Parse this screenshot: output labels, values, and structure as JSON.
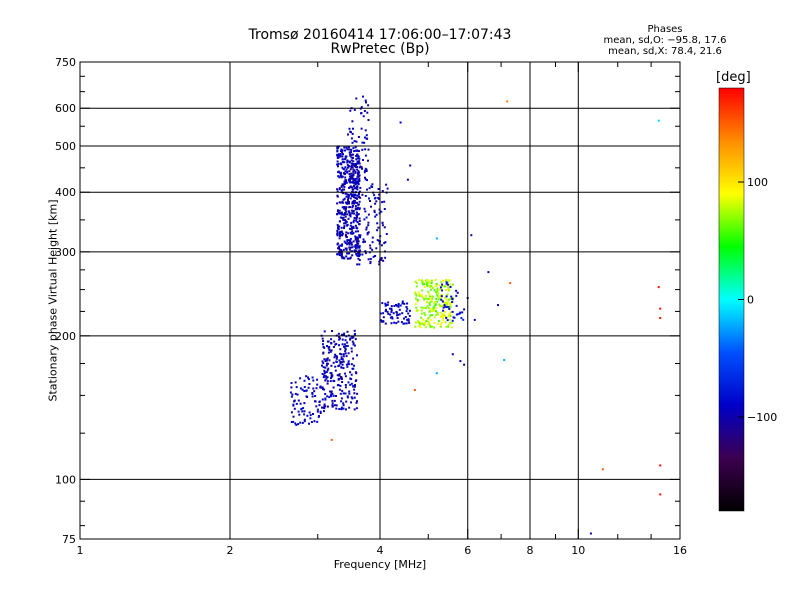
{
  "title_line1": "Tromsø 20160414 17:06:00–17:07:43",
  "title_line2": "RwPretec (Bp)",
  "phases": {
    "header": "Phases",
    "line_o": "mean, sd,O: −95.8, 17.6",
    "line_x": "mean, sd,X:  78.4, 21.6"
  },
  "chart_data": {
    "type": "scatter",
    "title": "Tromsø 20160414 17:06:00–17:07:43",
    "subtitle": "RwPretec (Bp)",
    "xlabel": "Frequency [MHz]",
    "ylabel": "Stationary phase Virtual Height [km]",
    "x_scale": "log",
    "y_scale": "log",
    "xlim": [
      1,
      16
    ],
    "ylim": [
      75,
      750
    ],
    "x_ticks": [
      1,
      2,
      4,
      6,
      8,
      10,
      16
    ],
    "x_tick_labels": [
      "1",
      "2",
      "4",
      "6",
      "8",
      "10",
      "16"
    ],
    "x_gridlines": [
      2,
      4,
      6,
      8,
      10
    ],
    "x_minor_ticks": [
      3,
      5,
      7,
      9,
      12,
      14
    ],
    "y_ticks": [
      75,
      100,
      200,
      300,
      400,
      500,
      600,
      750
    ],
    "y_tick_labels": [
      "75",
      "100",
      "200",
      "300",
      "400",
      "500",
      "600",
      "750"
    ],
    "y_gridlines": [
      100,
      200,
      300,
      400,
      500,
      600
    ],
    "y_minor_ticks": [
      80,
      90,
      125,
      150,
      175,
      225,
      250,
      275,
      350,
      450,
      550,
      650,
      700
    ],
    "grid": true,
    "colorbar": {
      "label": "[deg]",
      "range": [
        -180,
        180
      ],
      "ticks": [
        100,
        0,
        -100
      ],
      "tick_labels": [
        "100",
        "0",
        "−100"
      ],
      "colors": [
        "#ff0000",
        "#ff8c00",
        "#ffff00",
        "#00ff00",
        "#00ffff",
        "#0050ff",
        "#0000c8",
        "#3c0050",
        "#000000"
      ]
    },
    "clusters": [
      {
        "name": "",
        "points": 520,
        "f": [
          3.28,
          3.65
        ],
        "h": [
          290,
          500
        ],
        "phase": [
          -110,
          -85
        ]
      },
      {
        "name": "",
        "points": 60,
        "f": [
          3.45,
          3.8
        ],
        "h": [
          420,
          640
        ],
        "phase": [
          -110,
          -85
        ]
      },
      {
        "name": "",
        "points": 110,
        "f": [
          3.55,
          4.15
        ],
        "h": [
          280,
          420
        ],
        "phase": [
          -110,
          -80
        ]
      },
      {
        "name": "",
        "points": 250,
        "f": [
          3.05,
          3.6
        ],
        "h": [
          140,
          205
        ],
        "phase": [
          -112,
          -80
        ]
      },
      {
        "name": "",
        "points": 90,
        "f": [
          2.65,
          3.1
        ],
        "h": [
          130,
          165
        ],
        "phase": [
          -105,
          -80
        ]
      },
      {
        "name": "",
        "points": 70,
        "f": [
          4.0,
          4.6
        ],
        "h": [
          212,
          236
        ],
        "phase": [
          -100,
          -85
        ]
      },
      {
        "name": "",
        "points": 230,
        "f": [
          4.7,
          5.6
        ],
        "h": [
          208,
          262
        ],
        "phase": [
          55,
          95
        ]
      },
      {
        "name": "",
        "points": 40,
        "f": [
          5.3,
          5.9
        ],
        "h": [
          215,
          260
        ],
        "phase": [
          -100,
          -70
        ]
      }
    ],
    "isolated_points": [
      {
        "f": 7.2,
        "h": 620,
        "phase": 140
      },
      {
        "f": 14.5,
        "h": 565,
        "phase": -10
      },
      {
        "f": 4.4,
        "h": 560,
        "phase": -90
      },
      {
        "f": 4.6,
        "h": 455,
        "phase": -95
      },
      {
        "f": 4.55,
        "h": 425,
        "phase": -95
      },
      {
        "f": 6.1,
        "h": 325,
        "phase": -100
      },
      {
        "f": 5.2,
        "h": 320,
        "phase": -20
      },
      {
        "f": 6.6,
        "h": 272,
        "phase": -100
      },
      {
        "f": 7.3,
        "h": 258,
        "phase": 150
      },
      {
        "f": 14.5,
        "h": 253,
        "phase": 175
      },
      {
        "f": 14.6,
        "h": 228,
        "phase": 175
      },
      {
        "f": 14.6,
        "h": 218,
        "phase": 175
      },
      {
        "f": 6.0,
        "h": 240,
        "phase": -100
      },
      {
        "f": 6.9,
        "h": 232,
        "phase": -90
      },
      {
        "f": 6.2,
        "h": 216,
        "phase": -90
      },
      {
        "f": 7.1,
        "h": 178,
        "phase": -20
      },
      {
        "f": 5.6,
        "h": 183,
        "phase": -100
      },
      {
        "f": 5.8,
        "h": 177,
        "phase": -100
      },
      {
        "f": 5.9,
        "h": 174,
        "phase": -100
      },
      {
        "f": 5.2,
        "h": 167,
        "phase": -20
      },
      {
        "f": 4.7,
        "h": 154,
        "phase": 150
      },
      {
        "f": 3.2,
        "h": 121,
        "phase": 150
      },
      {
        "f": 11.2,
        "h": 105,
        "phase": 150
      },
      {
        "f": 14.6,
        "h": 107,
        "phase": 175
      },
      {
        "f": 14.6,
        "h": 93,
        "phase": 175
      },
      {
        "f": 10.6,
        "h": 77,
        "phase": -100
      }
    ]
  }
}
